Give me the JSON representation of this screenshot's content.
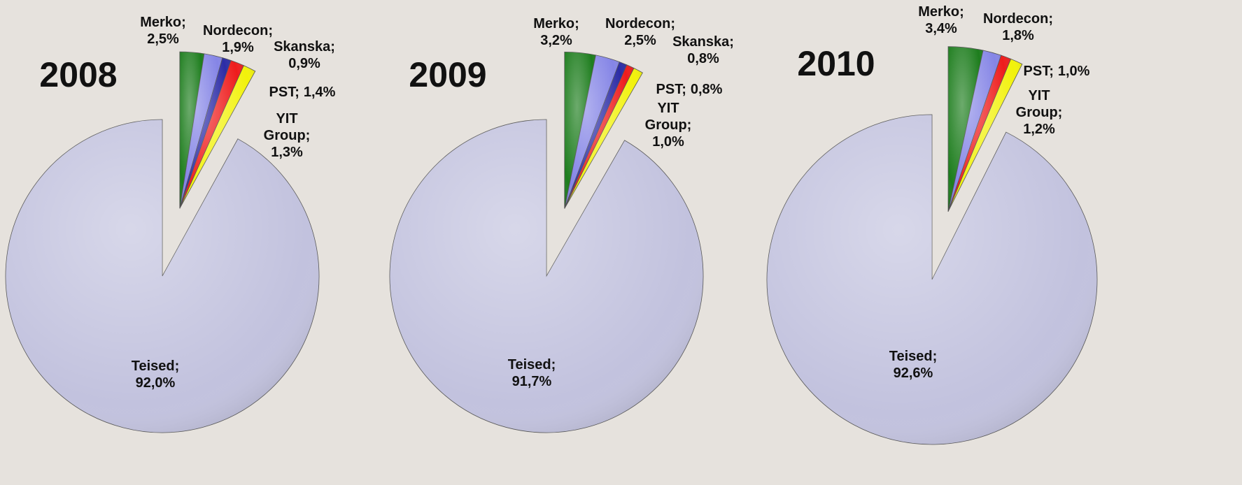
{
  "chart_data": [
    {
      "type": "pie",
      "title": "2008",
      "categories": [
        "Merko;",
        "Nordecon;",
        "Skanska;",
        "PST;",
        "YIT Group;",
        "Teised;"
      ],
      "values": [
        2.5,
        1.9,
        0.9,
        1.4,
        1.3,
        92.0
      ],
      "value_labels": [
        "2,5%",
        "1,9%",
        "0,9%",
        "1,4%",
        "1,3%",
        "92,0%"
      ],
      "colors": [
        "#1d7d1d",
        "#8585e6",
        "#2c2ca6",
        "#ee1c1c",
        "#f2f20a",
        "#c2c2de"
      ]
    },
    {
      "type": "pie",
      "title": "2009",
      "categories": [
        "Merko;",
        "Nordecon;",
        "Skanska;",
        "PST;",
        "YIT Group;",
        "Teised;"
      ],
      "values": [
        3.2,
        2.5,
        0.8,
        0.8,
        1.0,
        91.7
      ],
      "value_labels": [
        "3,2%",
        "2,5%",
        "0,8%",
        "0,8%",
        "1,0%",
        "91,7%"
      ],
      "colors": [
        "#1d7d1d",
        "#8585e6",
        "#2c2ca6",
        "#ee1c1c",
        "#f2f20a",
        "#c2c2de"
      ]
    },
    {
      "type": "pie",
      "title": "2010",
      "categories": [
        "Merko;",
        "Nordecon;",
        "PST;",
        "YIT Group;",
        "Teised;"
      ],
      "values": [
        3.4,
        1.8,
        1.0,
        1.2,
        92.6
      ],
      "value_labels": [
        "3,4%",
        "1,8%",
        "1,0%",
        "1,2%",
        "92,6%"
      ],
      "colors": [
        "#1d7d1d",
        "#8585e6",
        "#ee1c1c",
        "#f2f20a",
        "#c2c2de"
      ]
    }
  ]
}
